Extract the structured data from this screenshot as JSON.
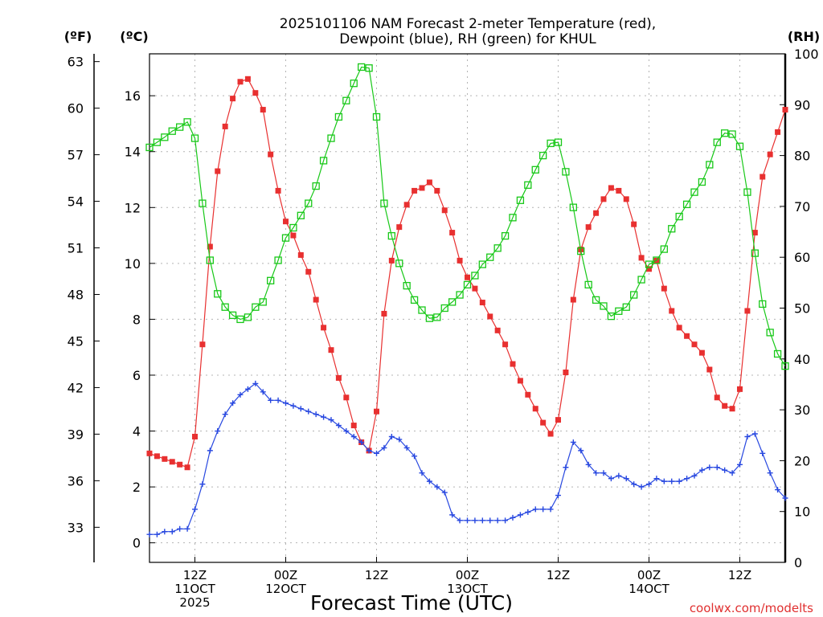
{
  "chart_data": {
    "type": "line",
    "title": [
      "2025101106 NAM Forecast 2-meter Temperature (red),",
      "Dewpoint (blue), RH (green) for KHUL"
    ],
    "xlabel": "Forecast Time (UTC)",
    "credit": "coolwx.com/modelts",
    "units": {
      "fahrenheit": "(ºF)",
      "celsius": "(ºC)",
      "rh": "(RH)"
    },
    "grid": true,
    "x_range_hours": [
      0,
      84
    ],
    "x_ticks": [
      {
        "hour": 6,
        "lines": [
          "12Z",
          "11OCT",
          "2025"
        ]
      },
      {
        "hour": 18,
        "lines": [
          "00Z",
          "12OCT"
        ]
      },
      {
        "hour": 30,
        "lines": [
          "12Z"
        ]
      },
      {
        "hour": 42,
        "lines": [
          "00Z",
          "13OCT"
        ]
      },
      {
        "hour": 54,
        "lines": [
          "12Z"
        ]
      },
      {
        "hour": 66,
        "lines": [
          "00Z",
          "14OCT"
        ]
      },
      {
        "hour": 78,
        "lines": [
          "12Z"
        ]
      }
    ],
    "celsius_axis": {
      "range": [
        -0.7,
        17.5
      ],
      "ticks": [
        0,
        2,
        4,
        6,
        8,
        10,
        12,
        14,
        16
      ]
    },
    "fahrenheit_axis": {
      "ticks": [
        33,
        36,
        39,
        42,
        45,
        48,
        51,
        54,
        57,
        60,
        63
      ]
    },
    "rh_axis": {
      "range": [
        0,
        100
      ],
      "ticks": [
        0,
        10,
        20,
        30,
        40,
        50,
        60,
        70,
        80,
        90,
        100
      ]
    },
    "series": [
      {
        "key": "temperature",
        "axis": "celsius",
        "color": "#e83030",
        "marker": "filled-square",
        "x": [
          0,
          1,
          2,
          3,
          4,
          5,
          6,
          7,
          8,
          9,
          10,
          11,
          12,
          13,
          14,
          15,
          16,
          17,
          18,
          19,
          20,
          21,
          22,
          23,
          24,
          25,
          26,
          27,
          28,
          29,
          30,
          31,
          32,
          33,
          34,
          35,
          36,
          37,
          38,
          39,
          40,
          41,
          42,
          43,
          44,
          45,
          46,
          47,
          48,
          49,
          50,
          51,
          52,
          53,
          54,
          55,
          56,
          57,
          58,
          59,
          60,
          61,
          62,
          63,
          64,
          65,
          66,
          67,
          68,
          69,
          70,
          71,
          72,
          73,
          74,
          75,
          76,
          77,
          78,
          79,
          80,
          81,
          82,
          83,
          84
        ],
        "values": [
          3.2,
          3.1,
          3.0,
          2.9,
          2.8,
          2.7,
          3.8,
          7.1,
          10.6,
          13.3,
          14.9,
          15.9,
          16.5,
          16.6,
          16.1,
          15.5,
          13.9,
          12.6,
          11.5,
          11.0,
          10.3,
          9.7,
          8.7,
          7.7,
          6.9,
          5.9,
          5.2,
          4.2,
          3.6,
          3.3,
          4.7,
          8.2,
          10.1,
          11.3,
          12.1,
          12.6,
          12.7,
          12.9,
          12.6,
          11.9,
          11.1,
          10.1,
          9.5,
          9.1,
          8.6,
          8.1,
          7.6,
          7.1,
          6.4,
          5.8,
          5.3,
          4.8,
          4.3,
          3.9,
          4.4,
          6.1,
          8.7,
          10.5,
          11.3,
          11.8,
          12.3,
          12.7,
          12.6,
          12.3,
          11.4,
          10.2,
          9.8,
          10.1,
          9.1,
          8.3,
          7.7,
          7.4,
          7.1,
          6.8,
          6.2,
          5.2,
          4.9,
          4.8,
          5.5,
          8.3,
          11.1,
          13.1,
          13.9,
          14.7,
          15.5
        ]
      },
      {
        "key": "dewpoint",
        "axis": "celsius",
        "color": "#2848e0",
        "marker": "plus",
        "x": [
          0,
          1,
          2,
          3,
          4,
          5,
          6,
          7,
          8,
          9,
          10,
          11,
          12,
          13,
          14,
          15,
          16,
          17,
          18,
          19,
          20,
          21,
          22,
          23,
          24,
          25,
          26,
          27,
          28,
          29,
          30,
          31,
          32,
          33,
          34,
          35,
          36,
          37,
          38,
          39,
          40,
          41,
          42,
          43,
          44,
          45,
          46,
          47,
          48,
          49,
          50,
          51,
          52,
          53,
          54,
          55,
          56,
          57,
          58,
          59,
          60,
          61,
          62,
          63,
          64,
          65,
          66,
          67,
          68,
          69,
          70,
          71,
          72,
          73,
          74,
          75,
          76,
          77,
          78,
          79,
          80,
          81,
          82,
          83,
          84
        ],
        "values": [
          0.3,
          0.3,
          0.4,
          0.4,
          0.5,
          0.5,
          1.2,
          2.1,
          3.3,
          4.0,
          4.6,
          5.0,
          5.3,
          5.5,
          5.7,
          5.4,
          5.1,
          5.1,
          5.0,
          4.9,
          4.8,
          4.7,
          4.6,
          4.5,
          4.4,
          4.2,
          4.0,
          3.8,
          3.6,
          3.3,
          3.2,
          3.4,
          3.8,
          3.7,
          3.4,
          3.1,
          2.5,
          2.2,
          2.0,
          1.8,
          1.0,
          0.8,
          0.8,
          0.8,
          0.8,
          0.8,
          0.8,
          0.8,
          0.9,
          1.0,
          1.1,
          1.2,
          1.2,
          1.2,
          1.7,
          2.7,
          3.6,
          3.3,
          2.8,
          2.5,
          2.5,
          2.3,
          2.4,
          2.3,
          2.1,
          2.0,
          2.1,
          2.3,
          2.2,
          2.2,
          2.2,
          2.3,
          2.4,
          2.6,
          2.7,
          2.7,
          2.6,
          2.5,
          2.8,
          3.8,
          3.9,
          3.2,
          2.5,
          1.9,
          1.6
        ]
      },
      {
        "key": "rh",
        "axis": "rh",
        "color": "#18c818",
        "marker": "open-square",
        "x": [
          0,
          1,
          2,
          3,
          4,
          5,
          6,
          7,
          8,
          9,
          10,
          11,
          12,
          13,
          14,
          15,
          16,
          17,
          18,
          19,
          20,
          21,
          22,
          23,
          24,
          25,
          26,
          27,
          28,
          29,
          30,
          31,
          32,
          33,
          34,
          35,
          36,
          37,
          38,
          39,
          40,
          41,
          42,
          43,
          44,
          45,
          46,
          47,
          48,
          49,
          50,
          51,
          52,
          53,
          54,
          55,
          56,
          57,
          58,
          59,
          60,
          61,
          62,
          63,
          64,
          65,
          66,
          67,
          68,
          69,
          70,
          71,
          72,
          73,
          74,
          75,
          76,
          77,
          78,
          79,
          80,
          81,
          82,
          83,
          84
        ],
        "values": [
          81.6,
          82.6,
          83.6,
          84.8,
          85.6,
          86.6,
          83.4,
          70.6,
          59.4,
          52.8,
          50.2,
          48.6,
          47.8,
          48.2,
          50.2,
          51.2,
          55.4,
          59.4,
          63.8,
          65.8,
          68.2,
          70.6,
          74.0,
          79.0,
          83.4,
          87.6,
          90.8,
          94.2,
          97.4,
          97.2,
          87.6,
          70.6,
          64.2,
          58.8,
          54.4,
          51.6,
          49.6,
          48.0,
          48.2,
          50.0,
          51.2,
          52.6,
          54.6,
          56.4,
          58.6,
          60.0,
          61.8,
          64.2,
          67.8,
          71.2,
          74.2,
          77.2,
          80.0,
          82.4,
          82.6,
          76.8,
          69.8,
          61.2,
          54.6,
          51.6,
          50.4,
          48.4,
          49.4,
          50.2,
          52.6,
          55.6,
          58.6,
          59.4,
          61.6,
          65.6,
          68.0,
          70.4,
          72.8,
          74.8,
          78.2,
          82.6,
          84.4,
          84.2,
          81.8,
          72.8,
          60.8,
          50.8,
          45.2,
          41.0,
          38.6
        ]
      }
    ]
  }
}
